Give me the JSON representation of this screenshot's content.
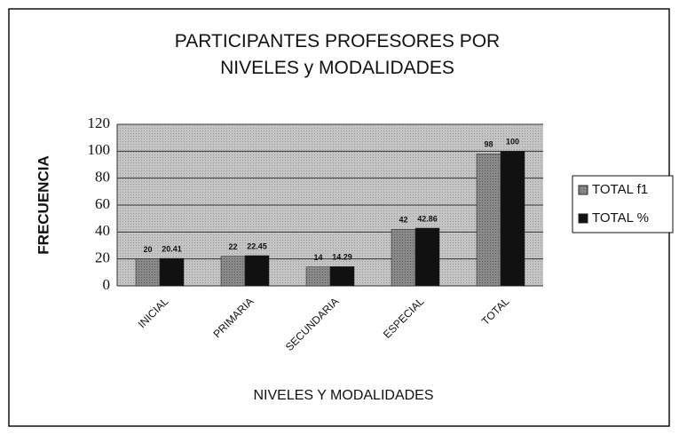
{
  "chart_data": {
    "type": "bar",
    "title": "PARTICIPANTES PROFESORES POR NIVELES y MODALIDADES",
    "x_label": "NIVELES Y MODALIDADES",
    "y_label": "FRECUENCIA",
    "categories": [
      "INICIAL",
      "PRIMARIA",
      "SECUNDARIA",
      "ESPECIAL",
      "TOTAL"
    ],
    "series": [
      {
        "name": "TOTAL f1",
        "color": "#7f7f7f",
        "values": [
          20,
          22,
          14,
          42,
          98
        ]
      },
      {
        "name": "TOTAL %",
        "color": "#111111",
        "values": [
          20.41,
          22.45,
          14.29,
          42.86,
          100
        ]
      }
    ],
    "ylim": [
      0,
      120
    ],
    "yticks": [
      0,
      20,
      40,
      60,
      80,
      100,
      120
    ],
    "grid": true,
    "legend": "right"
  }
}
